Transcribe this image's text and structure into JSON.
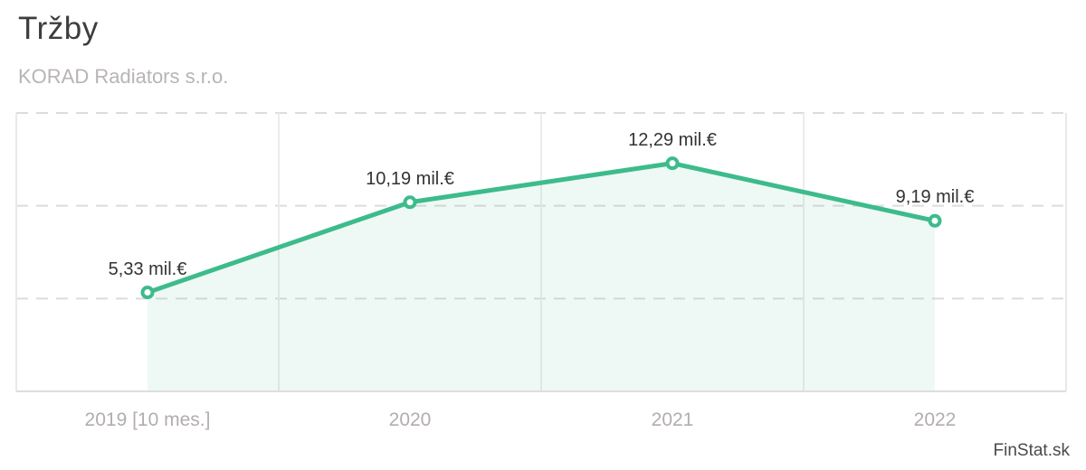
{
  "watermark": {
    "text": "FinStat.sk"
  },
  "chart_data": {
    "type": "line",
    "title": "Tržby",
    "subtitle": "KORAD Radiators s.r.o.",
    "categories": [
      "2019 [10 mes.]",
      "2020",
      "2021",
      "2022"
    ],
    "values": [
      5.33,
      10.19,
      12.29,
      9.19
    ],
    "point_labels": [
      "5,33 mil.€",
      "10,19 mil.€",
      "12,29 mil.€",
      "9,19 mil.€"
    ],
    "unit": "mil.€",
    "ylim": [
      0,
      15
    ],
    "y_gridline_step": 5,
    "grid": true,
    "legend": false,
    "area_fill": true,
    "colors": {
      "line": "#3dbb8c",
      "marker_fill": "#ffffff",
      "area_fill_rgba": "rgba(61,187,140,0.09)",
      "h_grid": "#dcdcdc",
      "v_grid": "#ececec",
      "plot_border": "#e9e9e9",
      "axis_line": "#dedede",
      "title": "#3d3d3d",
      "subtitle": "#b9b4b4",
      "tick_label": "#b3adad",
      "point_label": "#333333",
      "watermark": "#4a4a4a"
    }
  }
}
